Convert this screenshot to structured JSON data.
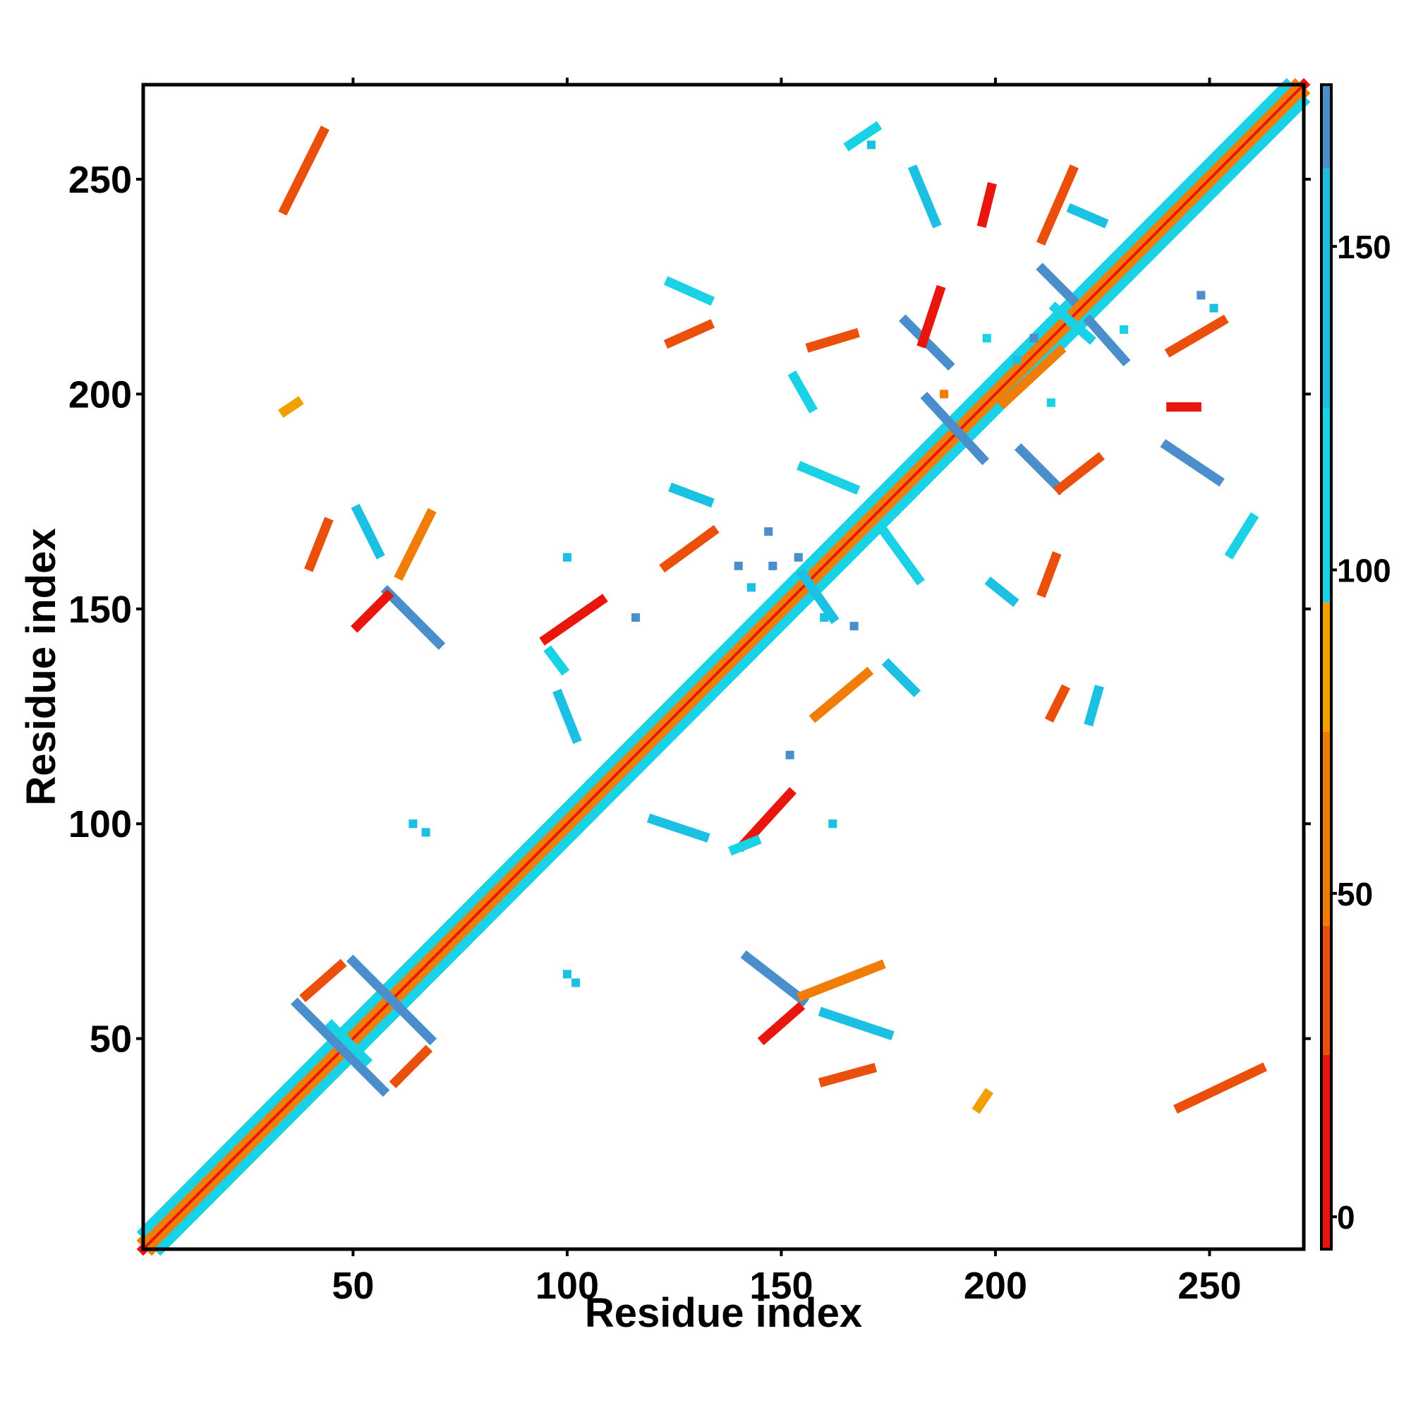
{
  "chart_data": {
    "type": "heatmap",
    "title": "",
    "xlabel": "Residue index",
    "ylabel": "Residue index",
    "xlim": [
      1,
      272
    ],
    "ylim": [
      1,
      272
    ],
    "x_ticks": [
      50,
      100,
      150,
      200,
      250
    ],
    "y_ticks": [
      50,
      100,
      150,
      200,
      250
    ],
    "colorbar": {
      "ticks": [
        0,
        50,
        100,
        150
      ],
      "range": [
        -5,
        175
      ],
      "bins": [
        {
          "from": -5,
          "to": 25,
          "color": "#e8160c"
        },
        {
          "from": 25,
          "to": 45,
          "color": "#ea4f0c"
        },
        {
          "from": 45,
          "to": 75,
          "color": "#f07d05"
        },
        {
          "from": 75,
          "to": 95,
          "color": "#f1a000"
        },
        {
          "from": 95,
          "to": 125,
          "color": "#19d2e6"
        },
        {
          "from": 125,
          "to": 162,
          "color": "#1cc0e2"
        },
        {
          "from": 162,
          "to": 175,
          "color": "#4a8fcc"
        }
      ]
    },
    "segments": [
      {
        "x1": 1,
        "y1": 1,
        "x2": 272,
        "y2": 272,
        "color": "#e8160c"
      },
      {
        "x1": 3,
        "y1": 1,
        "x2": 272,
        "y2": 270,
        "color": "#f07d05"
      },
      {
        "x1": 1,
        "y1": 3,
        "x2": 270,
        "y2": 272,
        "color": "#f07d05"
      },
      {
        "x1": 5,
        "y1": 1,
        "x2": 272,
        "y2": 268,
        "color": "#19d2e6"
      },
      {
        "x1": 1,
        "y1": 5,
        "x2": 268,
        "y2": 272,
        "color": "#19d2e6"
      },
      {
        "x1": 37,
        "y1": 58,
        "x2": 57,
        "y2": 38,
        "color": "#4a8fcc"
      },
      {
        "x1": 50,
        "y1": 68,
        "x2": 68,
        "y2": 50,
        "color": "#4a8fcc"
      },
      {
        "x1": 45,
        "y1": 53,
        "x2": 53,
        "y2": 45,
        "color": "#19d2e6"
      },
      {
        "x1": 39,
        "y1": 60,
        "x2": 47,
        "y2": 67,
        "color": "#ea4f0c"
      },
      {
        "x1": 60,
        "y1": 40,
        "x2": 67,
        "y2": 47,
        "color": "#ea4f0c"
      },
      {
        "x1": 58,
        "y1": 154,
        "x2": 70,
        "y2": 142,
        "color": "#4a8fcc"
      },
      {
        "x1": 51,
        "y1": 173,
        "x2": 56,
        "y2": 163,
        "color": "#1cc0e2"
      },
      {
        "x1": 61,
        "y1": 158,
        "x2": 68,
        "y2": 172,
        "color": "#f07d05"
      },
      {
        "x1": 51,
        "y1": 146,
        "x2": 58,
        "y2": 153,
        "color": "#e8160c"
      },
      {
        "x1": 40,
        "y1": 160,
        "x2": 44,
        "y2": 170,
        "color": "#ea4f0c"
      },
      {
        "x1": 34,
        "y1": 243,
        "x2": 43,
        "y2": 261,
        "color": "#ea4f0c"
      },
      {
        "x1": 95,
        "y1": 143,
        "x2": 108,
        "y2": 152,
        "color": "#e8160c"
      },
      {
        "x1": 96,
        "y1": 140,
        "x2": 99,
        "y2": 136,
        "color": "#19d2e6"
      },
      {
        "x1": 98,
        "y1": 130,
        "x2": 102,
        "y2": 120,
        "color": "#1cc0e2"
      },
      {
        "x1": 141,
        "y1": 95,
        "x2": 152,
        "y2": 107,
        "color": "#e8160c"
      },
      {
        "x1": 139,
        "y1": 94,
        "x2": 144,
        "y2": 96,
        "color": "#19d2e6"
      },
      {
        "x1": 120,
        "y1": 101,
        "x2": 132,
        "y2": 97,
        "color": "#1cc0e2"
      },
      {
        "x1": 142,
        "y1": 69,
        "x2": 155,
        "y2": 59,
        "color": "#4a8fcc"
      },
      {
        "x1": 155,
        "y1": 60,
        "x2": 173,
        "y2": 67,
        "color": "#f07d05"
      },
      {
        "x1": 160,
        "y1": 56,
        "x2": 175,
        "y2": 51,
        "color": "#1cc0e2"
      },
      {
        "x1": 146,
        "y1": 50,
        "x2": 154,
        "y2": 57,
        "color": "#e8160c"
      },
      {
        "x1": 160,
        "y1": 40,
        "x2": 171,
        "y2": 43,
        "color": "#ea4f0c"
      },
      {
        "x1": 125,
        "y1": 178,
        "x2": 133,
        "y2": 175,
        "color": "#1cc0e2"
      },
      {
        "x1": 123,
        "y1": 160,
        "x2": 134,
        "y2": 168,
        "color": "#ea4f0c"
      },
      {
        "x1": 155,
        "y1": 183,
        "x2": 167,
        "y2": 178,
        "color": "#19d2e6"
      },
      {
        "x1": 174,
        "y1": 168,
        "x2": 182,
        "y2": 157,
        "color": "#19d2e6"
      },
      {
        "x1": 155,
        "y1": 158,
        "x2": 162,
        "y2": 148,
        "color": "#1cc0e2"
      },
      {
        "x1": 175,
        "y1": 137,
        "x2": 181,
        "y2": 131,
        "color": "#1cc0e2"
      },
      {
        "x1": 158,
        "y1": 125,
        "x2": 170,
        "y2": 135,
        "color": "#f07d05"
      },
      {
        "x1": 153,
        "y1": 204,
        "x2": 157,
        "y2": 197,
        "color": "#19d2e6"
      },
      {
        "x1": 157,
        "y1": 211,
        "x2": 167,
        "y2": 214,
        "color": "#ea4f0c"
      },
      {
        "x1": 124,
        "y1": 226,
        "x2": 133,
        "y2": 222,
        "color": "#19d2e6"
      },
      {
        "x1": 124,
        "y1": 212,
        "x2": 133,
        "y2": 216,
        "color": "#ea4f0c"
      },
      {
        "x1": 179,
        "y1": 217,
        "x2": 189,
        "y2": 207,
        "color": "#4a8fcc"
      },
      {
        "x1": 183,
        "y1": 212,
        "x2": 187,
        "y2": 224,
        "color": "#e8160c"
      },
      {
        "x1": 184,
        "y1": 199,
        "x2": 197,
        "y2": 185,
        "color": "#4a8fcc"
      },
      {
        "x1": 206,
        "y1": 187,
        "x2": 215,
        "y2": 178,
        "color": "#4a8fcc"
      },
      {
        "x1": 215,
        "y1": 178,
        "x2": 224,
        "y2": 185,
        "color": "#ea4f0c"
      },
      {
        "x1": 211,
        "y1": 229,
        "x2": 218,
        "y2": 222,
        "color": "#4a8fcc"
      },
      {
        "x1": 222,
        "y1": 217,
        "x2": 230,
        "y2": 208,
        "color": "#4a8fcc"
      },
      {
        "x1": 214,
        "y1": 220,
        "x2": 222,
        "y2": 213,
        "color": "#19d2e6"
      },
      {
        "x1": 202,
        "y1": 198,
        "x2": 215,
        "y2": 210,
        "color": "#f07d05"
      },
      {
        "x1": 199,
        "y1": 156,
        "x2": 204,
        "y2": 152,
        "color": "#1cc0e2"
      },
      {
        "x1": 181,
        "y1": 252,
        "x2": 186,
        "y2": 240,
        "color": "#1cc0e2"
      },
      {
        "x1": 197,
        "y1": 240,
        "x2": 199,
        "y2": 248,
        "color": "#e8160c"
      },
      {
        "x1": 211,
        "y1": 236,
        "x2": 218,
        "y2": 252,
        "color": "#ea4f0c"
      },
      {
        "x1": 218,
        "y1": 243,
        "x2": 225,
        "y2": 240,
        "color": "#1cc0e2"
      },
      {
        "x1": 166,
        "y1": 258,
        "x2": 172,
        "y2": 262,
        "color": "#19d2e6"
      },
      {
        "x1": 241,
        "y1": 210,
        "x2": 253,
        "y2": 217,
        "color": "#ea4f0c"
      },
      {
        "x1": 240,
        "y1": 188,
        "x2": 252,
        "y2": 180,
        "color": "#4a8fcc"
      },
      {
        "x1": 241,
        "y1": 197,
        "x2": 247,
        "y2": 197,
        "color": "#e8160c"
      },
      {
        "x1": 255,
        "y1": 163,
        "x2": 260,
        "y2": 171,
        "color": "#19d2e6"
      },
      {
        "x1": 243,
        "y1": 34,
        "x2": 262,
        "y2": 43,
        "color": "#ea4f0c"
      },
      {
        "x1": 213,
        "y1": 125,
        "x2": 216,
        "y2": 131,
        "color": "#ea4f0c"
      },
      {
        "x1": 222,
        "y1": 124,
        "x2": 224,
        "y2": 131,
        "color": "#1cc0e2"
      },
      {
        "x1": 211,
        "y1": 154,
        "x2": 214,
        "y2": 162,
        "color": "#ea4f0c"
      },
      {
        "x1": 196,
        "y1": 34,
        "x2": 198,
        "y2": 37,
        "color": "#f1a000"
      },
      {
        "x1": 34,
        "y1": 196,
        "x2": 37,
        "y2": 198,
        "color": "#f1a000"
      }
    ],
    "points": [
      {
        "x": 64,
        "y": 100,
        "color": "#1cc0e2"
      },
      {
        "x": 67,
        "y": 98,
        "color": "#1cc0e2"
      },
      {
        "x": 100,
        "y": 65,
        "color": "#1cc0e2"
      },
      {
        "x": 102,
        "y": 63,
        "color": "#1cc0e2"
      },
      {
        "x": 100,
        "y": 162,
        "color": "#1cc0e2"
      },
      {
        "x": 162,
        "y": 100,
        "color": "#1cc0e2"
      },
      {
        "x": 147,
        "y": 168,
        "color": "#4a8fcc"
      },
      {
        "x": 154,
        "y": 162,
        "color": "#4a8fcc"
      },
      {
        "x": 140,
        "y": 160,
        "color": "#4a8fcc"
      },
      {
        "x": 116,
        "y": 148,
        "color": "#4a8fcc"
      },
      {
        "x": 152,
        "y": 116,
        "color": "#4a8fcc"
      },
      {
        "x": 167,
        "y": 146,
        "color": "#4a8fcc"
      },
      {
        "x": 143,
        "y": 155,
        "color": "#1cc0e2"
      },
      {
        "x": 160,
        "y": 148,
        "color": "#1cc0e2"
      },
      {
        "x": 148,
        "y": 160,
        "color": "#4a8fcc"
      },
      {
        "x": 205,
        "y": 208,
        "color": "#1cc0e2"
      },
      {
        "x": 209,
        "y": 213,
        "color": "#4a8fcc"
      },
      {
        "x": 213,
        "y": 198,
        "color": "#19d2e6"
      },
      {
        "x": 198,
        "y": 213,
        "color": "#19d2e6"
      },
      {
        "x": 188,
        "y": 200,
        "color": "#f07d05"
      },
      {
        "x": 171,
        "y": 258,
        "color": "#1cc0e2"
      },
      {
        "x": 230,
        "y": 215,
        "color": "#19d2e6"
      },
      {
        "x": 248,
        "y": 223,
        "color": "#4a8fcc"
      },
      {
        "x": 251,
        "y": 220,
        "color": "#1cc0e2"
      }
    ]
  }
}
